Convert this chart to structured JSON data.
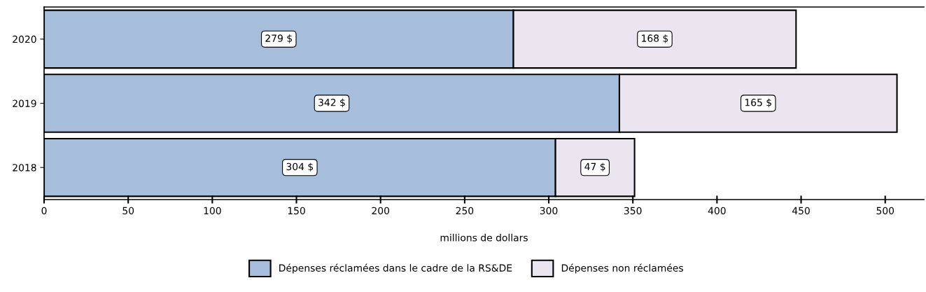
{
  "chart_data": {
    "type": "bar",
    "orientation": "horizontal",
    "stacked": true,
    "categories": [
      "2020",
      "2019",
      "2018"
    ],
    "series": [
      {
        "name": "Dépenses réclamées dans le cadre de la RS&DE",
        "color": "#a7bddc",
        "values": [
          279,
          342,
          304
        ],
        "value_labels": [
          "279 $",
          "342 $",
          "304 $"
        ]
      },
      {
        "name": "Dépenses non réclamées",
        "color": "#ebe5f0",
        "values": [
          168,
          165,
          47
        ],
        "value_labels": [
          "168 $",
          "165 $",
          "47 $"
        ]
      }
    ],
    "xlabel": "millions de dollars",
    "xlim": [
      0,
      523
    ],
    "xticks": [
      0,
      50,
      100,
      150,
      200,
      250,
      300,
      350,
      400,
      450,
      500
    ],
    "grid": false,
    "legend": "bottom"
  }
}
